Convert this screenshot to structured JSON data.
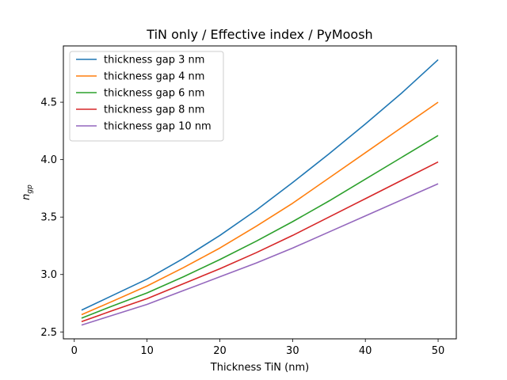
{
  "chart_data": {
    "type": "line",
    "title": "TiN only / Effective index / PyMoosh",
    "xlabel": "Thickness TiN (nm)",
    "ylabel": "n",
    "ylabel_subscript": "gp",
    "xlim": [
      -1.5,
      52.5
    ],
    "ylim": [
      2.44,
      4.99
    ],
    "xticks": [
      0,
      10,
      20,
      30,
      40,
      50
    ],
    "xtick_labels": [
      "0",
      "10",
      "20",
      "30",
      "40",
      "50"
    ],
    "yticks": [
      2.5,
      3.0,
      3.5,
      4.0,
      4.5
    ],
    "ytick_labels": [
      "2.5",
      "3.0",
      "3.5",
      "4.0",
      "4.5"
    ],
    "x": [
      1,
      5,
      10,
      15,
      20,
      25,
      30,
      35,
      40,
      45,
      50
    ],
    "series": [
      {
        "name": "thickness gap 3 nm",
        "color": "#1f77b4",
        "values": [
          2.69,
          2.81,
          2.96,
          3.14,
          3.34,
          3.56,
          3.8,
          4.05,
          4.31,
          4.58,
          4.87
        ]
      },
      {
        "name": "thickness gap 4 nm",
        "color": "#ff7f0e",
        "values": [
          2.65,
          2.76,
          2.9,
          3.06,
          3.23,
          3.42,
          3.62,
          3.84,
          4.06,
          4.28,
          4.5
        ]
      },
      {
        "name": "thickness gap 6 nm",
        "color": "#2ca02c",
        "values": [
          2.62,
          2.72,
          2.84,
          2.98,
          3.13,
          3.29,
          3.46,
          3.64,
          3.83,
          4.02,
          4.21
        ]
      },
      {
        "name": "thickness gap 8 nm",
        "color": "#d62728",
        "values": [
          2.59,
          2.68,
          2.79,
          2.92,
          3.05,
          3.19,
          3.34,
          3.5,
          3.66,
          3.82,
          3.98
        ]
      },
      {
        "name": "thickness gap 10 nm",
        "color": "#9467bd",
        "values": [
          2.56,
          2.64,
          2.74,
          2.86,
          2.98,
          3.1,
          3.23,
          3.37,
          3.51,
          3.65,
          3.79
        ]
      }
    ],
    "grid": false,
    "legend_position": "top-left"
  }
}
